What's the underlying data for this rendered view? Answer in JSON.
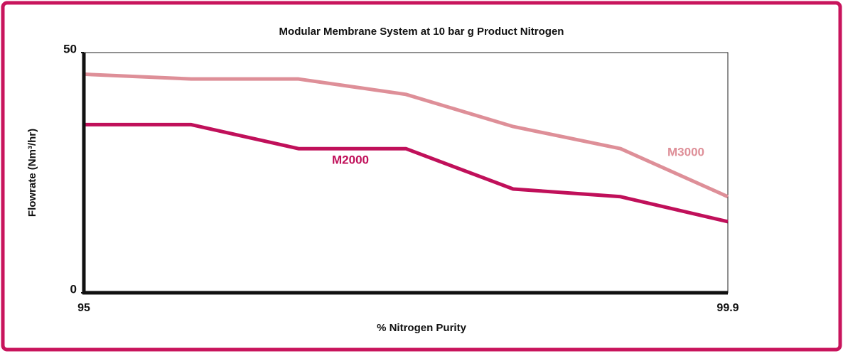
{
  "chart_data": {
    "type": "line",
    "title": "Modular Membrane System at 10 bar g Product Nitrogen",
    "x_label": "% Nitrogen Purity",
    "y_label": "Flowrate (Nm³/hr)",
    "categories": [
      "95",
      null,
      null,
      null,
      null,
      null,
      "99.9"
    ],
    "series": [
      {
        "name": "M2000",
        "color": "#c0105a",
        "values": [
          35,
          35,
          30,
          30,
          21.6,
          20,
          14.8
        ]
      },
      {
        "name": "M3000",
        "color": "#de8f98",
        "values": [
          45.5,
          44.5,
          44.5,
          41.3,
          34.6,
          30,
          20
        ]
      }
    ],
    "ylim": [
      0,
      50
    ],
    "yticks": [
      0,
      50
    ],
    "grid": false
  }
}
